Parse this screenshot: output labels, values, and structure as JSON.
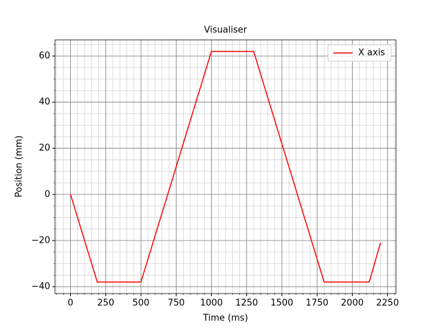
{
  "chart_data": {
    "type": "line",
    "title": "Visualiser",
    "xlabel": "Time (ms)",
    "ylabel": "Position (mm)",
    "x": [
      0,
      190,
      500,
      1000,
      1300,
      1800,
      2120,
      2200
    ],
    "series": [
      {
        "name": "X axis",
        "color": "#ff0000",
        "values": [
          0,
          -38,
          -38,
          62,
          62,
          -38,
          -38,
          -21
        ]
      }
    ],
    "xlim": [
      -110,
      2310
    ],
    "ylim": [
      -43,
      67
    ],
    "xticks": [
      0,
      250,
      500,
      750,
      1000,
      1250,
      1500,
      1750,
      2000,
      2250
    ],
    "yticks": [
      {
        "value": -40,
        "label": "−40"
      },
      {
        "value": -20,
        "label": "−20"
      },
      0,
      20,
      40,
      60
    ],
    "grid": true,
    "grid_color": "#808080",
    "minor_grid": true,
    "minor_grid_color": "#d3d3d3",
    "minor_divisions": {
      "x": 5,
      "y": 4
    },
    "legend": "upper right"
  }
}
